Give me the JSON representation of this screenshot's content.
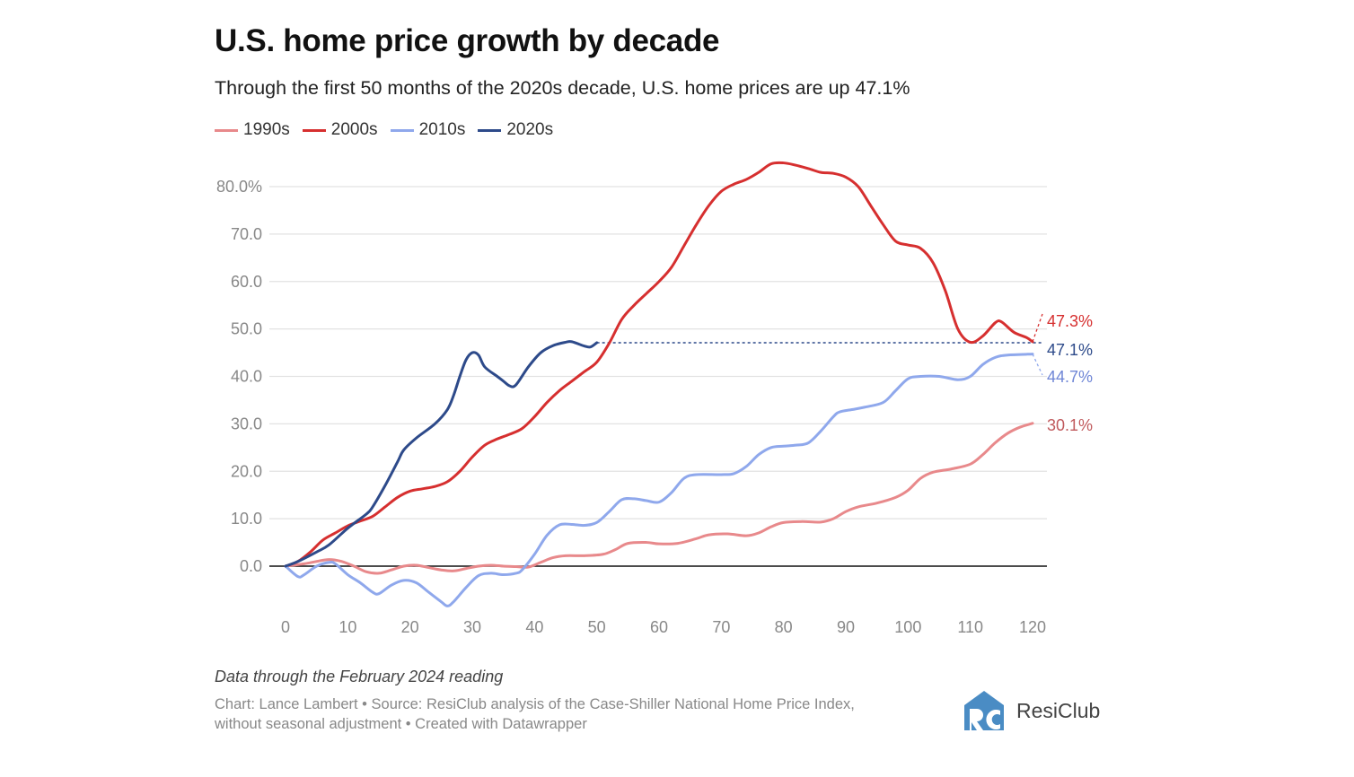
{
  "chart_data": {
    "type": "line",
    "title": "U.S. home price growth by decade",
    "subtitle": "Through the first 50 months of the 2020s decade, U.S. home prices are up 47.1%",
    "xlabel": "",
    "ylabel": "",
    "xlim": [
      0,
      120
    ],
    "ylim": [
      -10,
      85
    ],
    "x_ticks": [
      "0",
      "10",
      "20",
      "30",
      "40",
      "50",
      "60",
      "70",
      "80",
      "90",
      "100",
      "110",
      "120"
    ],
    "y_ticks": [
      {
        "value": 0,
        "label": "0.0"
      },
      {
        "value": 10,
        "label": "10.0"
      },
      {
        "value": 20,
        "label": "20.0"
      },
      {
        "value": 30,
        "label": "30.0"
      },
      {
        "value": 40,
        "label": "40.0"
      },
      {
        "value": 50,
        "label": "50.0"
      },
      {
        "value": 60,
        "label": "60.0"
      },
      {
        "value": 70,
        "label": "70.0"
      },
      {
        "value": 80,
        "label": "80.0%"
      }
    ],
    "grid": true,
    "legend": "top-left",
    "series": [
      {
        "name": "1990s",
        "color": "#e8898b",
        "end_label": "30.1%",
        "end_value": 30.1,
        "points": [
          [
            0,
            0
          ],
          [
            3,
            0.5
          ],
          [
            5,
            1
          ],
          [
            7,
            1.4
          ],
          [
            9,
            1
          ],
          [
            11,
            0
          ],
          [
            13,
            -1.2
          ],
          [
            15,
            -1.5
          ],
          [
            17,
            -0.8
          ],
          [
            19,
            0
          ],
          [
            21,
            0.2
          ],
          [
            23,
            -0.3
          ],
          [
            25,
            -0.8
          ],
          [
            27,
            -1
          ],
          [
            29,
            -0.5
          ],
          [
            31,
            0
          ],
          [
            33,
            0.2
          ],
          [
            35,
            0
          ],
          [
            37,
            -0.1
          ],
          [
            39,
            -0.2
          ],
          [
            41,
            0.8
          ],
          [
            43,
            1.8
          ],
          [
            45,
            2.2
          ],
          [
            48,
            2.2
          ],
          [
            51,
            2.5
          ],
          [
            53,
            3.5
          ],
          [
            55,
            4.8
          ],
          [
            58,
            5
          ],
          [
            60,
            4.7
          ],
          [
            63,
            4.8
          ],
          [
            66,
            5.8
          ],
          [
            68,
            6.6
          ],
          [
            71,
            6.8
          ],
          [
            74,
            6.4
          ],
          [
            76,
            7
          ],
          [
            78,
            8.3
          ],
          [
            80,
            9.2
          ],
          [
            83,
            9.4
          ],
          [
            86,
            9.3
          ],
          [
            88,
            10
          ],
          [
            90,
            11.5
          ],
          [
            92,
            12.5
          ],
          [
            95,
            13.3
          ],
          [
            98,
            14.5
          ],
          [
            100,
            16
          ],
          [
            102,
            18.5
          ],
          [
            104,
            19.8
          ],
          [
            107,
            20.5
          ],
          [
            110,
            21.5
          ],
          [
            112,
            23.5
          ],
          [
            114,
            26
          ],
          [
            116,
            28
          ],
          [
            118,
            29.3
          ],
          [
            120,
            30.1
          ]
        ]
      },
      {
        "name": "2000s",
        "color": "#d62f2f",
        "end_label": "47.3%",
        "end_value": 47.3,
        "points": [
          [
            0,
            0
          ],
          [
            2,
            1
          ],
          [
            4,
            3
          ],
          [
            6,
            5.5
          ],
          [
            8,
            7
          ],
          [
            10,
            8.5
          ],
          [
            12,
            9.5
          ],
          [
            14,
            10.5
          ],
          [
            16,
            12.5
          ],
          [
            18,
            14.5
          ],
          [
            20,
            15.8
          ],
          [
            22,
            16.3
          ],
          [
            24,
            16.8
          ],
          [
            26,
            17.8
          ],
          [
            28,
            20
          ],
          [
            30,
            23
          ],
          [
            32,
            25.5
          ],
          [
            34,
            26.8
          ],
          [
            36,
            27.8
          ],
          [
            38,
            29
          ],
          [
            40,
            31.5
          ],
          [
            42,
            34.5
          ],
          [
            44,
            37
          ],
          [
            46,
            39
          ],
          [
            48,
            41
          ],
          [
            50,
            43
          ],
          [
            52,
            47
          ],
          [
            54,
            52
          ],
          [
            56,
            55
          ],
          [
            58,
            57.5
          ],
          [
            60,
            60
          ],
          [
            62,
            63
          ],
          [
            64,
            67.5
          ],
          [
            66,
            72
          ],
          [
            68,
            76
          ],
          [
            70,
            79
          ],
          [
            72,
            80.5
          ],
          [
            74,
            81.5
          ],
          [
            76,
            83
          ],
          [
            78,
            84.8
          ],
          [
            80,
            85
          ],
          [
            82,
            84.5
          ],
          [
            84,
            83.8
          ],
          [
            86,
            83
          ],
          [
            88,
            82.8
          ],
          [
            90,
            82
          ],
          [
            92,
            80
          ],
          [
            94,
            76
          ],
          [
            96,
            72
          ],
          [
            98,
            68.5
          ],
          [
            100,
            67.7
          ],
          [
            102,
            67
          ],
          [
            104,
            64
          ],
          [
            106,
            58
          ],
          [
            108,
            50
          ],
          [
            110,
            47.2
          ],
          [
            112,
            48.5
          ],
          [
            114,
            51.3
          ],
          [
            115,
            51.5
          ],
          [
            117,
            49.3
          ],
          [
            119,
            48.2
          ],
          [
            120,
            47.3
          ]
        ]
      },
      {
        "name": "2010s",
        "color": "#8fa8ec",
        "end_label": "44.7%",
        "end_value": 44.7,
        "points": [
          [
            0,
            0
          ],
          [
            2,
            -2.2
          ],
          [
            3,
            -1.8
          ],
          [
            5,
            0
          ],
          [
            7,
            0.8
          ],
          [
            8,
            0.5
          ],
          [
            10,
            -1.8
          ],
          [
            12,
            -3.5
          ],
          [
            14,
            -5.5
          ],
          [
            15,
            -5.8
          ],
          [
            17,
            -4
          ],
          [
            19,
            -3
          ],
          [
            21,
            -3.5
          ],
          [
            23,
            -5.5
          ],
          [
            25,
            -7.5
          ],
          [
            26,
            -8.4
          ],
          [
            27,
            -7.5
          ],
          [
            29,
            -4.5
          ],
          [
            31,
            -2
          ],
          [
            33,
            -1.5
          ],
          [
            35,
            -1.8
          ],
          [
            37,
            -1.5
          ],
          [
            38,
            -0.8
          ],
          [
            40,
            2.5
          ],
          [
            42,
            6.5
          ],
          [
            44,
            8.7
          ],
          [
            46,
            8.8
          ],
          [
            48,
            8.6
          ],
          [
            50,
            9.2
          ],
          [
            52,
            11.5
          ],
          [
            54,
            14
          ],
          [
            56,
            14.2
          ],
          [
            58,
            13.8
          ],
          [
            60,
            13.5
          ],
          [
            62,
            15.5
          ],
          [
            64,
            18.5
          ],
          [
            66,
            19.3
          ],
          [
            70,
            19.3
          ],
          [
            72,
            19.5
          ],
          [
            74,
            21
          ],
          [
            76,
            23.5
          ],
          [
            78,
            25
          ],
          [
            80,
            25.3
          ],
          [
            82,
            25.5
          ],
          [
            84,
            26
          ],
          [
            86,
            28.5
          ],
          [
            88,
            31.5
          ],
          [
            89,
            32.5
          ],
          [
            91,
            33
          ],
          [
            93,
            33.5
          ],
          [
            96,
            34.5
          ],
          [
            98,
            37
          ],
          [
            100,
            39.5
          ],
          [
            102,
            40
          ],
          [
            105,
            40
          ],
          [
            108,
            39.3
          ],
          [
            110,
            40
          ],
          [
            112,
            42.5
          ],
          [
            114,
            44
          ],
          [
            116,
            44.5
          ],
          [
            120,
            44.7
          ]
        ]
      },
      {
        "name": "2020s",
        "color": "#2d4a8a",
        "end_label": "47.1%",
        "end_value": 47.1,
        "points": [
          [
            0,
            0
          ],
          [
            2,
            1
          ],
          [
            5,
            3
          ],
          [
            7,
            4.5
          ],
          [
            10,
            8
          ],
          [
            13,
            11
          ],
          [
            14,
            12.5
          ],
          [
            16,
            17
          ],
          [
            18,
            22
          ],
          [
            19,
            24.5
          ],
          [
            21,
            27
          ],
          [
            24,
            30
          ],
          [
            26,
            33
          ],
          [
            27,
            36
          ],
          [
            28,
            40
          ],
          [
            29,
            43.5
          ],
          [
            30,
            45
          ],
          [
            31,
            44.5
          ],
          [
            32,
            42
          ],
          [
            34,
            40
          ],
          [
            35,
            39
          ],
          [
            36,
            38
          ],
          [
            37,
            38.2
          ],
          [
            39,
            42
          ],
          [
            41,
            45
          ],
          [
            43,
            46.5
          ],
          [
            45,
            47.2
          ],
          [
            46,
            47.3
          ],
          [
            48,
            46.4
          ],
          [
            49,
            46.2
          ],
          [
            50,
            47.1
          ]
        ]
      }
    ]
  },
  "note": "Data through the February 2024 reading",
  "source_line1": "Chart: Lance Lambert • Source: ResiClub analysis of the Case-Shiller National Home Price Index,",
  "source_line2": "without seasonal adjustment • Created with Datawrapper",
  "logo": {
    "text": "ResiClub",
    "mark": "RC",
    "color": "#4a8cc4"
  }
}
